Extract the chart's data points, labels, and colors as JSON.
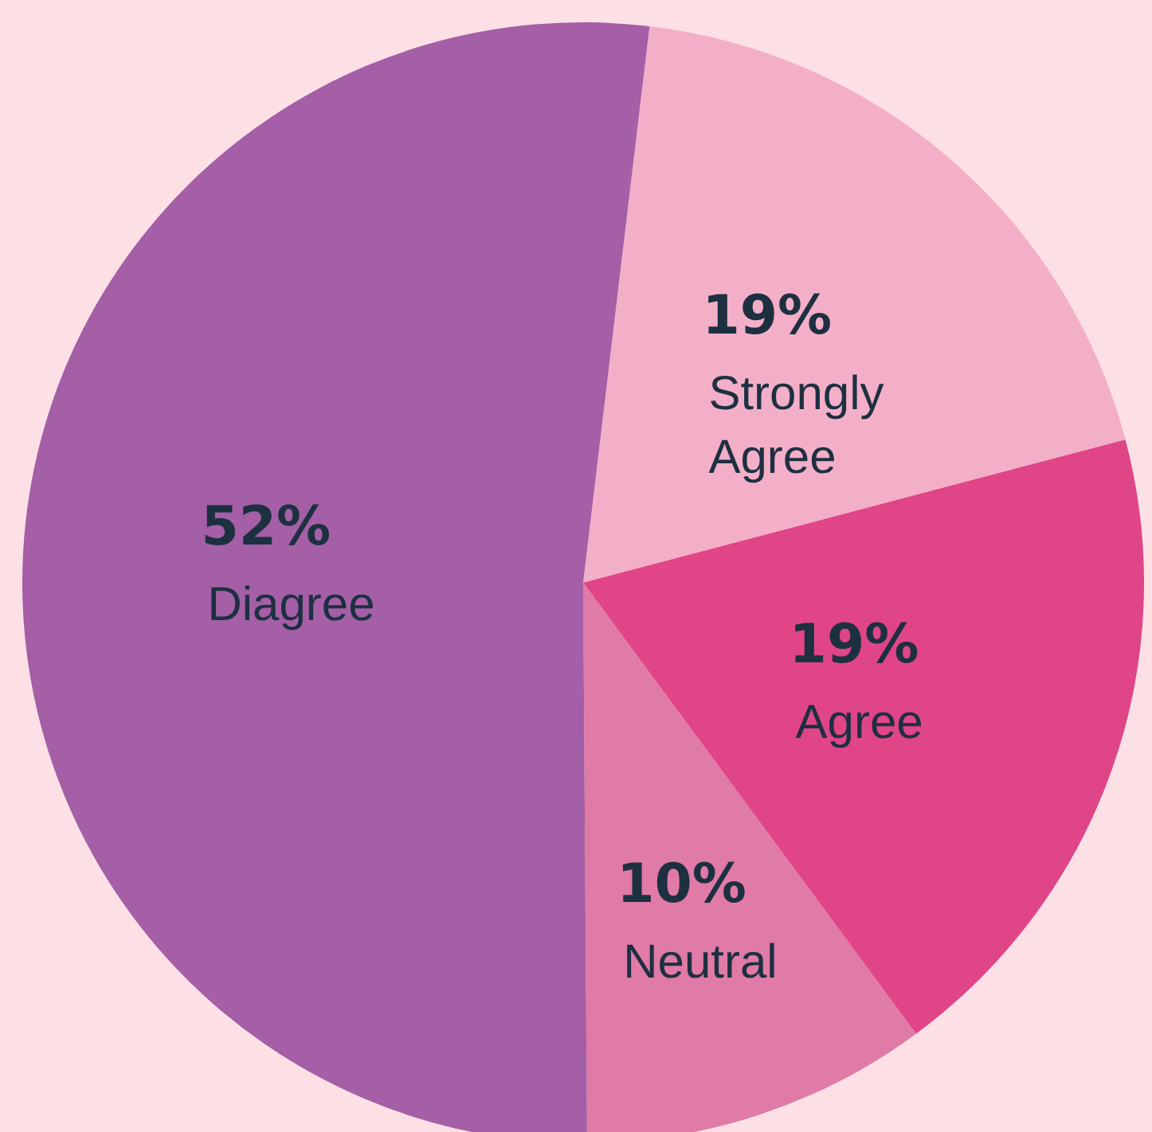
{
  "chart_data": {
    "type": "pie",
    "categories": [
      "Strongly Agree",
      "Agree",
      "Neutral",
      "Diagree"
    ],
    "values": [
      19,
      19,
      10,
      52
    ],
    "colors": [
      "#f4afc8",
      "#e04587",
      "#e07aa6",
      "#a45fa7"
    ],
    "value_labels": [
      "19%",
      "19%",
      "10%",
      "52%"
    ],
    "legend": false
  }
}
